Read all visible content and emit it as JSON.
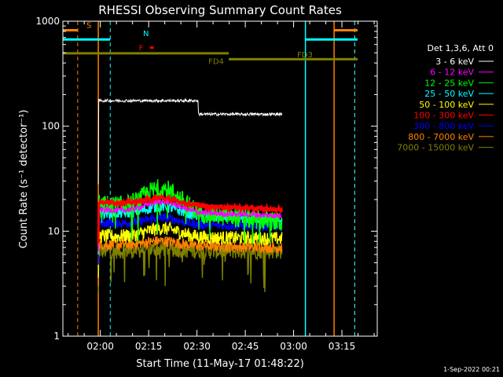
{
  "chart_data": {
    "type": "line",
    "title": "RHESSI Observing Summary Count Rates",
    "xlabel": "Start Time (11-May-17 01:48:22)",
    "ylabel": "Count Rate (s⁻¹ detector⁻¹)",
    "yscale": "log",
    "ylim": [
      1,
      1000
    ],
    "xlim_minutes": [
      0,
      97.6
    ],
    "x_tick_labels": [
      "02:00",
      "02:15",
      "02:30",
      "02:45",
      "03:00",
      "03:15"
    ],
    "x_tick_minutes": [
      11.63,
      26.63,
      41.63,
      56.63,
      71.63,
      86.63
    ],
    "y_tick_labels": [
      "1",
      "10",
      "100",
      "1000"
    ],
    "y_tick_values": [
      1,
      10,
      100,
      1000
    ],
    "legend_title": "Det 1,3,6, Att 0",
    "legend_placement": "right",
    "series": [
      {
        "name": "3 - 6 keV",
        "color": "#ffffff",
        "level_start": 175,
        "level_end": 130,
        "noise": 0.03,
        "peak": 1.0
      },
      {
        "name": "6 - 12 keV",
        "color": "#ff00ff",
        "level_start": 16,
        "level_end": 14,
        "noise": 0.06,
        "peak": 1.25
      },
      {
        "name": "12 - 25 keV",
        "color": "#00ff00",
        "level_start": 18,
        "level_end": 12,
        "noise": 0.22,
        "peak": 1.6
      },
      {
        "name": "25 - 50 keV",
        "color": "#00ffff",
        "level_start": 15,
        "level_end": 13,
        "noise": 0.12,
        "peak": 1.2
      },
      {
        "name": "50 - 100 keV",
        "color": "#ffff00",
        "level_start": 9,
        "level_end": 8.5,
        "noise": 0.15,
        "peak": 1.2
      },
      {
        "name": "100 - 300 keV",
        "color": "#ff0000",
        "level_start": 19,
        "level_end": 16,
        "noise": 0.05,
        "peak": 1.15
      },
      {
        "name": "300 - 800 keV",
        "color": "#0000ff",
        "level_start": 12,
        "level_end": 11,
        "noise": 0.1,
        "peak": 1.15
      },
      {
        "name": "800 - 7000 keV",
        "color": "#ff8000",
        "level_start": 7.5,
        "level_end": 7,
        "noise": 0.12,
        "peak": 1.1
      },
      {
        "name": "7000 - 15000 keV",
        "color": "#808000",
        "level_start": 6.5,
        "level_end": 6.5,
        "noise": 0.18,
        "peak": 1.05
      }
    ],
    "data_start_minute": 11.0,
    "data_end_minute": 68.0,
    "step_minute": 42.0,
    "vertical_markers": [
      {
        "minute": 4.6,
        "color": "#ff8000",
        "style": "dashed"
      },
      {
        "minute": 14.7,
        "color": "#00ffff",
        "style": "dashed"
      },
      {
        "minute": 11.0,
        "color": "#ff8000",
        "style": "solid"
      },
      {
        "minute": 75.3,
        "color": "#00ffff",
        "style": "solid"
      },
      {
        "minute": 84.2,
        "color": "#ff8000",
        "style": "solid"
      },
      {
        "minute": 90.6,
        "color": "#ff8000",
        "style": "dashed"
      },
      {
        "minute": 90.6,
        "color": "#00ffff",
        "style": "dashed"
      }
    ],
    "flag_bars": [
      {
        "label": "S",
        "color": "#ff8000",
        "minute_from": 0.0,
        "minute_to": 4.6,
        "value": 820
      },
      {
        "label": "S",
        "color": "#ff8000",
        "minute_from": 84.2,
        "minute_to": 91.5,
        "value": 820
      },
      {
        "label": "N",
        "color": "#00ffff",
        "minute_from": 0.0,
        "minute_to": 14.7,
        "value": 670
      },
      {
        "label": "N",
        "color": "#00ffff",
        "minute_from": 75.3,
        "minute_to": 91.5,
        "value": 670
      },
      {
        "label": "F",
        "color": "#ff0000",
        "minute_from": 27.0,
        "minute_to": 28.2,
        "value": 560
      },
      {
        "label": "FD3",
        "color": "#808000",
        "minute_from": 0.0,
        "minute_to": 51.5,
        "value": 495
      },
      {
        "label": "FD4",
        "color": "#808000",
        "minute_from": 51.5,
        "minute_to": 91.5,
        "value": 435
      }
    ]
  },
  "footer": {
    "date_stamp": "1-Sep-2022 00:21"
  }
}
